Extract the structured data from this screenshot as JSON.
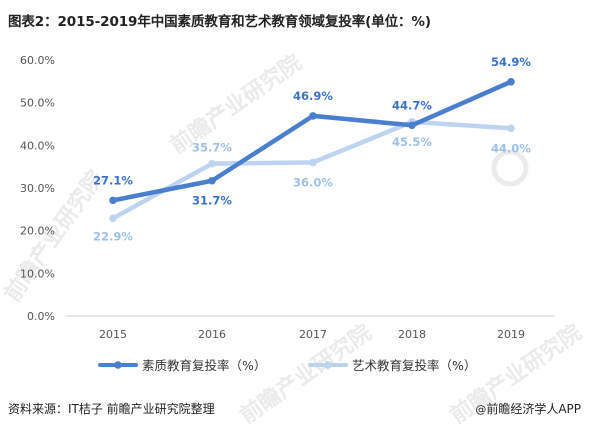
{
  "title": "图表2：2015-2019年中国素质教育和艺术教育领域复投率(单位：%)",
  "footer": {
    "source": "资料来源：IT桔子 前瞻产业研究院整理",
    "brand_at": "@",
    "brand": "前瞻经济学人APP"
  },
  "watermarks": [
    "前瞻产业研究院",
    "前瞻产业研究院",
    "前瞻产业研究院",
    "前瞻产业研究院"
  ],
  "colors": {
    "series1": "#4a7fd0",
    "series2": "#bdd4f0",
    "label1": "#3a72c8",
    "label2": "#9ec0ea"
  },
  "chart_data": {
    "type": "line",
    "x": [
      "2015",
      "2016",
      "2017",
      "2018",
      "2019"
    ],
    "ylim": [
      0,
      60
    ],
    "yticks": [
      "0.0%",
      "10.0%",
      "20.0%",
      "30.0%",
      "40.0%",
      "50.0%",
      "60.0%"
    ],
    "ytick_values": [
      0,
      10,
      20,
      30,
      40,
      50,
      60
    ],
    "grid": false,
    "legend_position": "bottom",
    "series": [
      {
        "name": "素质教育复投率（%）",
        "values": [
          27.1,
          31.7,
          46.9,
          44.7,
          54.9
        ],
        "labels": [
          "27.1%",
          "31.7%",
          "46.9%",
          "44.7%",
          "54.9%"
        ]
      },
      {
        "name": "艺术教育复投率（%）",
        "values": [
          22.9,
          35.7,
          36.0,
          45.5,
          44.0
        ],
        "labels": [
          "22.9%",
          "35.7%",
          "36.0%",
          "45.5%",
          "44.0%"
        ]
      }
    ]
  }
}
